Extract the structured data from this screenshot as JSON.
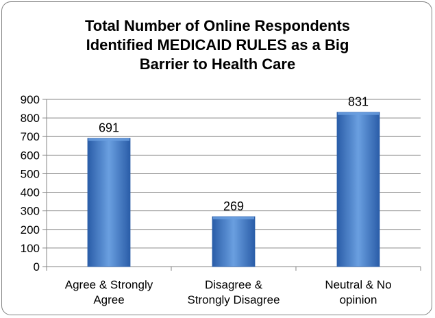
{
  "chart_data": {
    "type": "bar",
    "title_lines": [
      "Total Number of Online Respondents",
      "Identified MEDICAID RULES as a Big",
      "Barrier to Health Care"
    ],
    "categories": [
      [
        "Agree & Strongly",
        "Agree"
      ],
      [
        "Disagree &",
        "Strongly Disagree"
      ],
      [
        "Neutral & No",
        "opinion"
      ]
    ],
    "values": [
      691,
      269,
      831
    ],
    "data_labels": [
      "691",
      "269",
      "831"
    ],
    "ylim": [
      0,
      900
    ],
    "yticks": [
      0,
      100,
      200,
      300,
      400,
      500,
      600,
      700,
      800,
      900
    ],
    "xlabel": "",
    "ylabel": "",
    "grid": true,
    "legend": "none",
    "colors": {
      "bar_light": "#6a9fe0",
      "bar_mid": "#3f79c8",
      "bar_dark": "#2a5da8",
      "grid": "#868686",
      "axis": "#868686"
    }
  }
}
